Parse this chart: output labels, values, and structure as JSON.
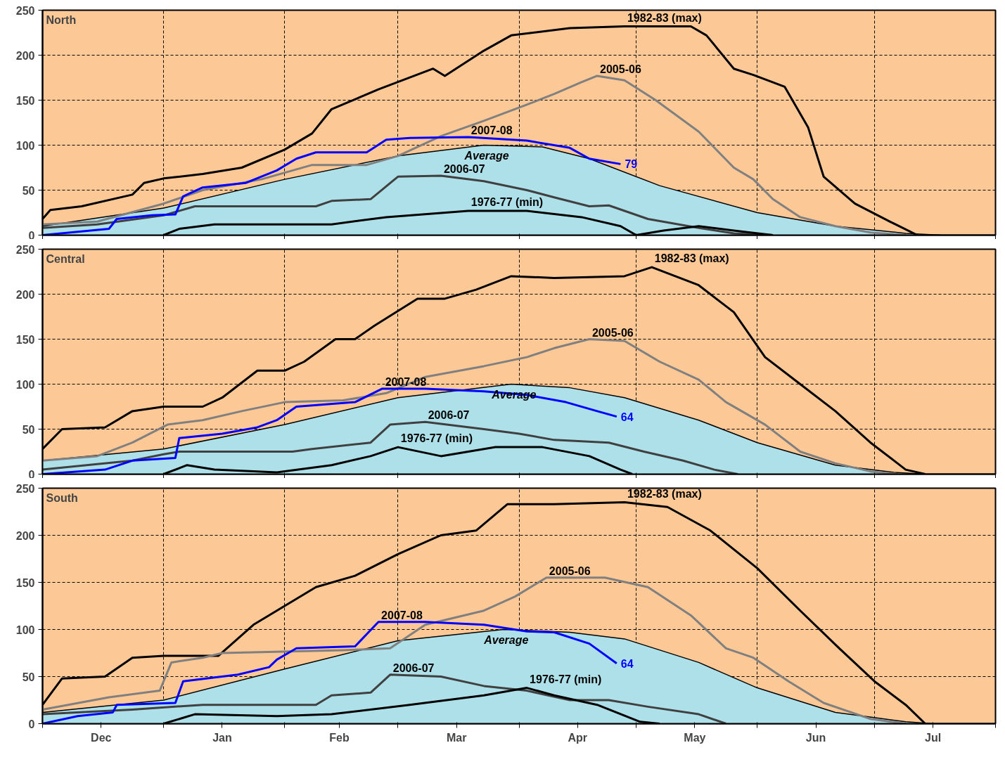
{
  "chart_data": [
    {
      "type": "line",
      "title": "North",
      "xlim": [
        "2007-12-01",
        "2008-08-01"
      ],
      "ylim": [
        0,
        250
      ],
      "yticks": [
        0,
        50,
        100,
        150,
        200,
        250
      ],
      "grid": true,
      "tick_labels": "y",
      "xticks": [
        {
          "value": "2007-12-01",
          "label": null
        },
        {
          "value": "2008-01-01",
          "label": null
        },
        {
          "value": "2008-02-01",
          "label": null
        },
        {
          "value": "2008-03-01",
          "label": null
        },
        {
          "value": "2008-04-01",
          "label": null
        },
        {
          "value": "2008-05-01",
          "label": null
        },
        {
          "value": "2008-06-01",
          "label": null
        },
        {
          "value": "2008-07-01",
          "label": null
        },
        {
          "value": "2008-08-01",
          "label": null
        }
      ],
      "series": [
        {
          "name": "Average",
          "type": "area",
          "color": "#aee0ea",
          "x": [
            "2007-12-01",
            "2008-01-01",
            "2008-02-01",
            "2008-03-01",
            "2008-03-23",
            "2008-04-07",
            "2008-04-19",
            "2008-05-07",
            "2008-06-01",
            "2008-06-21",
            "2008-07-09",
            "2008-07-18"
          ],
          "values": [
            10,
            30,
            62,
            88,
            100,
            98,
            85,
            55,
            25,
            10,
            2,
            0
          ]
        },
        {
          "name": "1982-83 (max)",
          "color": "#000000",
          "x": [
            "2007-12-01",
            "2007-12-03",
            "2007-12-11",
            "2007-12-24",
            "2007-12-27",
            "2008-01-01",
            "2008-01-11",
            "2008-01-21",
            "2008-02-01",
            "2008-02-08",
            "2008-02-13",
            "2008-02-25",
            "2008-03-10",
            "2008-03-13",
            "2008-03-23",
            "2008-03-30",
            "2008-04-14",
            "2008-04-28",
            "2008-05-15",
            "2008-05-19",
            "2008-05-26",
            "2008-05-31",
            "2008-06-08",
            "2008-06-14",
            "2008-06-18",
            "2008-06-26",
            "2008-07-05",
            "2008-07-12"
          ],
          "values": [
            18,
            28,
            32,
            45,
            58,
            63,
            68,
            75,
            95,
            113,
            140,
            162,
            185,
            177,
            205,
            222,
            230,
            232,
            232,
            222,
            185,
            178,
            165,
            120,
            65,
            35,
            15,
            0
          ]
        },
        {
          "name": "2005-06",
          "color": "#808080",
          "x": [
            "2007-12-01",
            "2007-12-15",
            "2008-01-01",
            "2008-01-11",
            "2008-01-26",
            "2008-02-08",
            "2008-02-22",
            "2008-03-01",
            "2008-03-12",
            "2008-03-23",
            "2008-04-03",
            "2008-04-10",
            "2008-04-17",
            "2008-04-21",
            "2008-04-28",
            "2008-05-06",
            "2008-05-17",
            "2008-05-26",
            "2008-05-31",
            "2008-06-05",
            "2008-06-12",
            "2008-06-21",
            "2008-06-30",
            "2008-07-09"
          ],
          "values": [
            12,
            15,
            35,
            50,
            62,
            78,
            78,
            88,
            110,
            127,
            145,
            157,
            170,
            177,
            172,
            150,
            115,
            75,
            62,
            40,
            20,
            10,
            3,
            0
          ]
        },
        {
          "name": "2006-07",
          "color": "#404040",
          "x": [
            "2007-12-01",
            "2007-12-15",
            "2008-01-01",
            "2008-01-09",
            "2008-02-09",
            "2008-02-13",
            "2008-02-23",
            "2008-03-01",
            "2008-03-12",
            "2008-03-23",
            "2008-04-03",
            "2008-04-10",
            "2008-04-19",
            "2008-04-24",
            "2008-05-04",
            "2008-05-17",
            "2008-05-26",
            "2008-06-05"
          ],
          "values": [
            8,
            12,
            22,
            32,
            32,
            38,
            40,
            65,
            66,
            60,
            50,
            42,
            32,
            33,
            18,
            8,
            2,
            0
          ]
        },
        {
          "name": "1976-77 (min)",
          "color": "#000000",
          "x": [
            "2008-01-01",
            "2008-01-05",
            "2008-01-14",
            "2008-02-03",
            "2008-02-13",
            "2008-02-27",
            "2008-03-19",
            "2008-04-03",
            "2008-04-17",
            "2008-04-27",
            "2008-05-01",
            "2008-05-08",
            "2008-05-17",
            "2008-05-26",
            "2008-06-05"
          ],
          "values": [
            0,
            7,
            12,
            12,
            12,
            20,
            27,
            27,
            20,
            10,
            0,
            5,
            10,
            5,
            0
          ]
        },
        {
          "name": "2007-08",
          "color": "#0000ff",
          "x": [
            "2007-12-01",
            "2007-12-18",
            "2007-12-20",
            "2007-12-29",
            "2008-01-04",
            "2008-01-06",
            "2008-01-11",
            "2008-01-22",
            "2008-01-30",
            "2008-02-04",
            "2008-02-09",
            "2008-02-22",
            "2008-02-27",
            "2008-03-04",
            "2008-03-19",
            "2008-04-03",
            "2008-04-14",
            "2008-04-19",
            "2008-04-27"
          ],
          "values": [
            0,
            7,
            18,
            22,
            23,
            43,
            53,
            58,
            72,
            85,
            92,
            92,
            106,
            108,
            109,
            105,
            97,
            85,
            79
          ],
          "value_labels": [
            null,
            null,
            null,
            null,
            null,
            null,
            null,
            null,
            null,
            null,
            null,
            null,
            null,
            null,
            null,
            null,
            null,
            null,
            "79"
          ]
        }
      ]
    },
    {
      "type": "line",
      "title": "Central",
      "xlim": [
        "2007-12-01",
        "2008-08-01"
      ],
      "ylim": [
        0,
        250
      ],
      "yticks": [
        0,
        50,
        100,
        150,
        200,
        250
      ],
      "grid": true,
      "tick_labels": "y",
      "xticks": [
        {
          "value": "2007-12-01",
          "label": null
        },
        {
          "value": "2008-01-01",
          "label": null
        },
        {
          "value": "2008-02-01",
          "label": null
        },
        {
          "value": "2008-03-01",
          "label": null
        },
        {
          "value": "2008-04-01",
          "label": null
        },
        {
          "value": "2008-05-01",
          "label": null
        },
        {
          "value": "2008-06-01",
          "label": null
        },
        {
          "value": "2008-07-01",
          "label": null
        },
        {
          "value": "2008-08-01",
          "label": null
        }
      ],
      "series": [
        {
          "name": "Average",
          "type": "area",
          "color": "#aee0ea",
          "x": [
            "2007-12-01",
            "2008-01-01",
            "2008-02-01",
            "2008-03-01",
            "2008-03-30",
            "2008-04-14",
            "2008-04-28",
            "2008-05-17",
            "2008-06-01",
            "2008-06-21",
            "2008-07-06",
            "2008-07-14"
          ],
          "values": [
            15,
            28,
            55,
            85,
            100,
            96,
            85,
            60,
            35,
            10,
            2,
            0
          ]
        },
        {
          "name": "1982-83 (max)",
          "color": "#000000",
          "x": [
            "2007-12-01",
            "2007-12-06",
            "2007-12-17",
            "2007-12-24",
            "2008-01-01",
            "2008-01-11",
            "2008-01-16",
            "2008-01-25",
            "2008-02-01",
            "2008-02-06",
            "2008-02-14",
            "2008-02-19",
            "2008-02-24",
            "2008-03-06",
            "2008-03-13",
            "2008-03-21",
            "2008-03-30",
            "2008-04-10",
            "2008-04-28",
            "2008-05-05",
            "2008-05-17",
            "2008-05-26",
            "2008-06-03",
            "2008-06-12",
            "2008-06-21",
            "2008-06-30",
            "2008-07-09",
            "2008-07-14"
          ],
          "values": [
            28,
            50,
            52,
            70,
            75,
            75,
            85,
            115,
            115,
            125,
            150,
            150,
            165,
            195,
            195,
            205,
            220,
            218,
            220,
            230,
            210,
            180,
            130,
            100,
            70,
            35,
            5,
            0
          ]
        },
        {
          "name": "2005-06",
          "color": "#808080",
          "x": [
            "2007-12-01",
            "2007-12-15",
            "2007-12-24",
            "2008-01-02",
            "2008-01-11",
            "2008-01-21",
            "2008-02-01",
            "2008-02-16",
            "2008-02-27",
            "2008-03-08",
            "2008-03-23",
            "2008-04-03",
            "2008-04-10",
            "2008-04-19",
            "2008-04-28",
            "2008-05-07",
            "2008-05-17",
            "2008-05-24",
            "2008-06-03",
            "2008-06-12",
            "2008-06-21",
            "2008-06-30",
            "2008-07-07"
          ],
          "values": [
            15,
            20,
            35,
            55,
            60,
            70,
            80,
            82,
            90,
            108,
            120,
            130,
            140,
            150,
            148,
            125,
            105,
            80,
            55,
            25,
            12,
            3,
            0
          ]
        },
        {
          "name": "2006-07",
          "color": "#404040",
          "x": [
            "2007-12-01",
            "2007-12-24",
            "2008-01-01",
            "2008-01-05",
            "2008-02-03",
            "2008-02-08",
            "2008-02-23",
            "2008-02-28",
            "2008-03-08",
            "2008-03-23",
            "2008-04-01",
            "2008-04-10",
            "2008-04-24",
            "2008-05-03",
            "2008-05-13",
            "2008-05-21",
            "2008-05-27"
          ],
          "values": [
            5,
            15,
            22,
            25,
            25,
            28,
            35,
            55,
            58,
            50,
            45,
            38,
            35,
            25,
            15,
            5,
            0
          ]
        },
        {
          "name": "1976-77 (min)",
          "color": "#000000",
          "x": [
            "2008-01-01",
            "2008-01-07",
            "2008-01-14",
            "2008-01-30",
            "2008-02-13",
            "2008-02-23",
            "2008-03-01",
            "2008-03-12",
            "2008-03-26",
            "2008-04-07",
            "2008-04-19",
            "2008-04-27",
            "2008-04-30"
          ],
          "values": [
            0,
            10,
            5,
            2,
            10,
            20,
            30,
            20,
            30,
            30,
            20,
            5,
            0
          ]
        },
        {
          "name": "2007-08",
          "color": "#0000ff",
          "x": [
            "2007-12-01",
            "2007-12-17",
            "2007-12-24",
            "2008-01-04",
            "2008-01-05",
            "2008-01-16",
            "2008-01-25",
            "2008-01-30",
            "2008-02-04",
            "2008-02-19",
            "2008-02-26",
            "2008-03-08",
            "2008-03-23",
            "2008-04-03",
            "2008-04-13",
            "2008-04-21",
            "2008-04-26"
          ],
          "values": [
            0,
            5,
            15,
            18,
            40,
            45,
            52,
            60,
            75,
            80,
            95,
            95,
            92,
            88,
            80,
            70,
            64
          ],
          "value_labels": [
            null,
            null,
            null,
            null,
            null,
            null,
            null,
            null,
            null,
            null,
            null,
            null,
            null,
            null,
            null,
            null,
            "64"
          ]
        }
      ]
    },
    {
      "type": "line",
      "title": "South",
      "xlim": [
        "2007-12-01",
        "2008-08-01"
      ],
      "ylim": [
        0,
        250
      ],
      "yticks": [
        0,
        50,
        100,
        150,
        200,
        250
      ],
      "grid": true,
      "xticks": [
        {
          "value": "2007-12-01",
          "label": null
        },
        {
          "value": "2008-01-01",
          "label": null
        },
        {
          "value": "2008-02-01",
          "label": null
        },
        {
          "value": "2008-03-01",
          "label": null
        },
        {
          "value": "2008-04-01",
          "label": null
        },
        {
          "value": "2008-05-01",
          "label": null
        },
        {
          "value": "2008-06-01",
          "label": null
        },
        {
          "value": "2008-07-01",
          "label": null
        },
        {
          "value": "2008-08-01",
          "label": null
        },
        {
          "value": "2007-12-16",
          "label": "Dec"
        },
        {
          "value": "2008-01-16",
          "label": "Jan"
        },
        {
          "value": "2008-02-15",
          "label": "Feb"
        },
        {
          "value": "2008-03-16",
          "label": "Mar"
        },
        {
          "value": "2008-04-16",
          "label": "Apr"
        },
        {
          "value": "2008-05-16",
          "label": "May"
        },
        {
          "value": "2008-06-16",
          "label": "Jun"
        },
        {
          "value": "2008-07-16",
          "label": "Jul"
        }
      ],
      "series": [
        {
          "name": "Average",
          "type": "area",
          "color": "#aee0ea",
          "x": [
            "2007-12-01",
            "2008-01-01",
            "2008-02-01",
            "2008-03-01",
            "2008-03-28",
            "2008-04-14",
            "2008-04-28",
            "2008-05-17",
            "2008-06-01",
            "2008-06-21",
            "2008-07-09",
            "2008-07-16"
          ],
          "values": [
            12,
            25,
            58,
            88,
            100,
            97,
            90,
            65,
            38,
            12,
            2,
            0
          ]
        },
        {
          "name": "1982-83 (max)",
          "color": "#000000",
          "x": [
            "2007-12-01",
            "2007-12-06",
            "2007-12-17",
            "2007-12-24",
            "2008-01-01",
            "2008-01-15",
            "2008-01-24",
            "2008-02-01",
            "2008-02-09",
            "2008-02-19",
            "2008-03-01",
            "2008-03-12",
            "2008-03-21",
            "2008-03-29",
            "2008-04-10",
            "2008-04-28",
            "2008-05-09",
            "2008-05-20",
            "2008-06-01",
            "2008-06-12",
            "2008-06-22",
            "2008-07-01",
            "2008-07-09",
            "2008-07-14"
          ],
          "values": [
            20,
            48,
            50,
            70,
            72,
            72,
            105,
            125,
            145,
            157,
            180,
            200,
            205,
            233,
            233,
            235,
            230,
            205,
            165,
            120,
            80,
            45,
            20,
            0
          ]
        },
        {
          "name": "2005-06",
          "color": "#808080",
          "x": [
            "2007-12-01",
            "2007-12-18",
            "2007-12-31",
            "2008-01-03",
            "2008-01-11",
            "2008-01-16",
            "2008-02-16",
            "2008-02-28",
            "2008-03-08",
            "2008-03-23",
            "2008-03-31",
            "2008-04-08",
            "2008-04-23",
            "2008-05-04",
            "2008-05-15",
            "2008-05-24",
            "2008-05-31",
            "2008-06-09",
            "2008-06-18",
            "2008-06-30",
            "2008-07-09"
          ],
          "values": [
            15,
            28,
            35,
            65,
            70,
            75,
            78,
            80,
            105,
            120,
            135,
            155,
            155,
            145,
            115,
            80,
            70,
            45,
            22,
            5,
            0
          ]
        },
        {
          "name": "2006-07",
          "color": "#404040",
          "x": [
            "2007-12-01",
            "2007-12-24",
            "2008-01-11",
            "2008-02-09",
            "2008-02-13",
            "2008-02-23",
            "2008-02-28",
            "2008-03-12",
            "2008-03-23",
            "2008-04-03",
            "2008-04-14",
            "2008-04-24",
            "2008-05-04",
            "2008-05-17",
            "2008-05-24"
          ],
          "values": [
            10,
            15,
            20,
            20,
            30,
            33,
            52,
            50,
            40,
            35,
            25,
            25,
            18,
            10,
            0
          ]
        },
        {
          "name": "1976-77 (min)",
          "color": "#000000",
          "x": [
            "2008-01-01",
            "2008-01-09",
            "2008-01-30",
            "2008-02-13",
            "2008-03-04",
            "2008-03-23",
            "2008-04-03",
            "2008-04-10",
            "2008-04-21",
            "2008-05-02",
            "2008-05-07"
          ],
          "values": [
            0,
            10,
            8,
            10,
            20,
            30,
            38,
            30,
            20,
            2,
            0
          ]
        },
        {
          "name": "2007-08",
          "color": "#0000ff",
          "x": [
            "2007-12-01",
            "2007-12-10",
            "2007-12-19",
            "2007-12-20",
            "2008-01-04",
            "2008-01-06",
            "2008-01-20",
            "2008-01-28",
            "2008-01-30",
            "2008-02-04",
            "2008-02-19",
            "2008-02-25",
            "2008-03-08",
            "2008-03-23",
            "2008-04-03",
            "2008-04-10",
            "2008-04-19",
            "2008-04-26"
          ],
          "values": [
            0,
            8,
            12,
            20,
            22,
            45,
            52,
            60,
            68,
            80,
            82,
            108,
            108,
            105,
            98,
            97,
            85,
            64
          ],
          "value_labels": [
            null,
            null,
            null,
            null,
            null,
            null,
            null,
            null,
            null,
            null,
            null,
            null,
            null,
            null,
            null,
            null,
            null,
            "64"
          ]
        }
      ]
    }
  ]
}
